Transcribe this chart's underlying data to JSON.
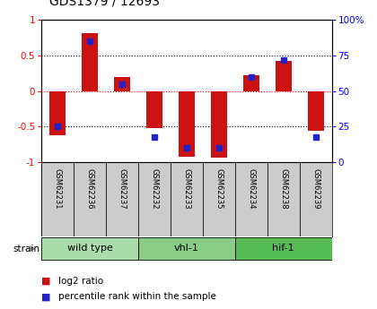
{
  "title": "GDS1379 / 12693",
  "samples": [
    "GSM62231",
    "GSM62236",
    "GSM62237",
    "GSM62232",
    "GSM62233",
    "GSM62235",
    "GSM62234",
    "GSM62238",
    "GSM62239"
  ],
  "log2_ratio": [
    -0.62,
    0.82,
    0.2,
    -0.52,
    -0.92,
    -0.93,
    0.22,
    0.43,
    -0.56
  ],
  "percentile_rank": [
    25,
    85,
    55,
    18,
    10,
    10,
    60,
    72,
    18
  ],
  "groups": [
    {
      "label": "wild type",
      "start": 0,
      "end": 3,
      "color": "#aaddaa"
    },
    {
      "label": "vhl-1",
      "start": 3,
      "end": 6,
      "color": "#88cc88"
    },
    {
      "label": "hif-1",
      "start": 6,
      "end": 9,
      "color": "#55bb55"
    }
  ],
  "bar_color": "#cc1111",
  "dot_color": "#2222cc",
  "ylim_left": [
    -1,
    1
  ],
  "ylim_right": [
    0,
    100
  ],
  "yticks_left": [
    -1,
    -0.5,
    0,
    0.5,
    1
  ],
  "ytick_labels_left": [
    "-1",
    "-0.5",
    "0",
    "0.5",
    "1"
  ],
  "yticks_right": [
    0,
    25,
    50,
    75,
    100
  ],
  "ytick_labels_right": [
    "0",
    "25",
    "50",
    "75",
    "100%"
  ],
  "dotted_lines_black": [
    -0.5,
    0.5
  ],
  "dotted_line_red": 0,
  "bar_width": 0.5,
  "strain_label": "strain",
  "legend_red": "log2 ratio",
  "legend_blue": "percentile rank within the sample",
  "sample_box_color": "#cccccc",
  "fig_bg": "#ffffff"
}
